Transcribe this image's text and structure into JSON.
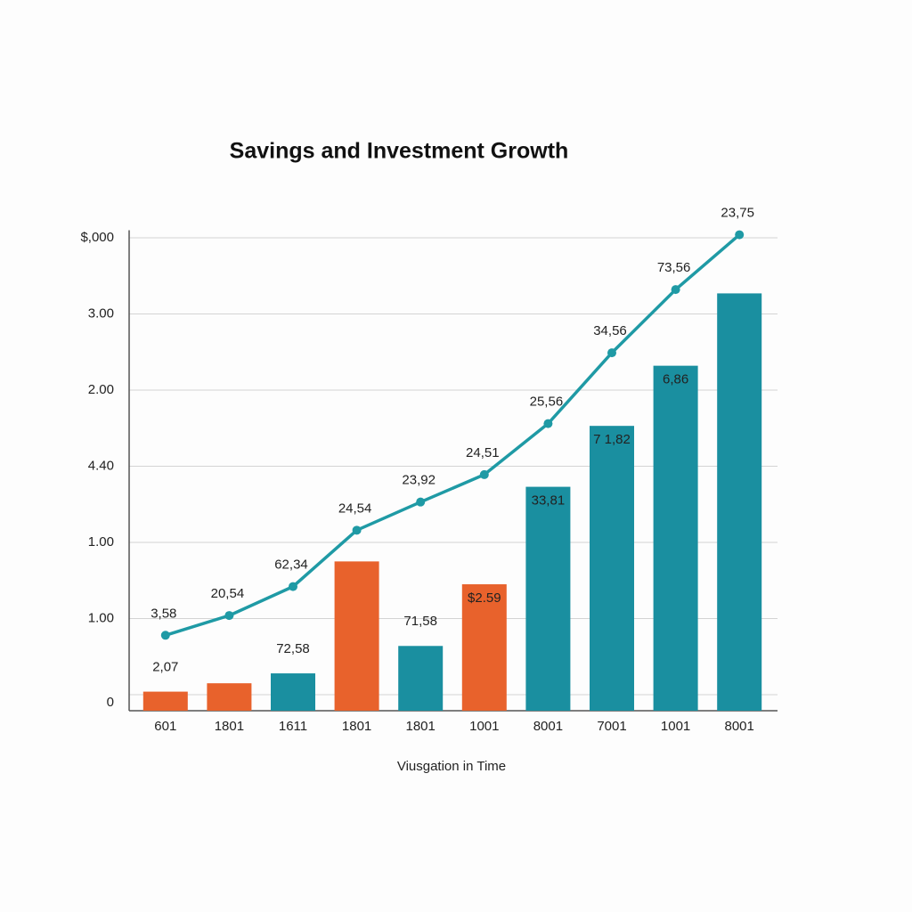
{
  "chart_data": {
    "type": "bar",
    "title": "Savings and Investment Growth",
    "x_label": "Viusgation in Time",
    "categories": [
      "601",
      "1801",
      "1611",
      "1801",
      "1801",
      "1001",
      "8001",
      "7001",
      "1001",
      "8001"
    ],
    "ylim": [
      -0.2,
      6.1
    ],
    "yticks": [
      {
        "value": 0,
        "label": "0"
      },
      {
        "value": 1,
        "label": "1.00"
      },
      {
        "value": 2,
        "label": "1.00"
      },
      {
        "value": 3,
        "label": "4.40"
      },
      {
        "value": 4,
        "label": "2.00"
      },
      {
        "value": 5,
        "label": "3.00"
      },
      {
        "value": 6,
        "label": "$,000"
      }
    ],
    "grid": true,
    "series": [
      {
        "type": "bar",
        "colors": [
          "#e8622c",
          "#e8622c",
          "#1a8fa0",
          "#e8622c",
          "#1a8fa0",
          "#e8622c",
          "#1a8fa0",
          "#1a8fa0",
          "#1a8fa0",
          "#1a8fa0"
        ],
        "values": [
          0.04,
          0.15,
          0.28,
          1.75,
          0.64,
          1.45,
          2.73,
          3.53,
          4.32,
          5.27
        ],
        "value_labels": [
          "2,07",
          null,
          "72,58",
          null,
          "71,58",
          "$2.59",
          "33,81",
          "7 1,82",
          "6,86",
          null
        ]
      },
      {
        "type": "line",
        "color": "#1f9aa5",
        "values": [
          0.78,
          1.04,
          1.42,
          2.16,
          2.53,
          2.89,
          3.56,
          4.49,
          5.32,
          6.04
        ],
        "value_labels": [
          "3,58",
          "20,54",
          "62,34",
          "24,54",
          "23,92",
          "24,51",
          "25,56",
          "34,56",
          "73,56",
          "23,75"
        ]
      }
    ]
  }
}
